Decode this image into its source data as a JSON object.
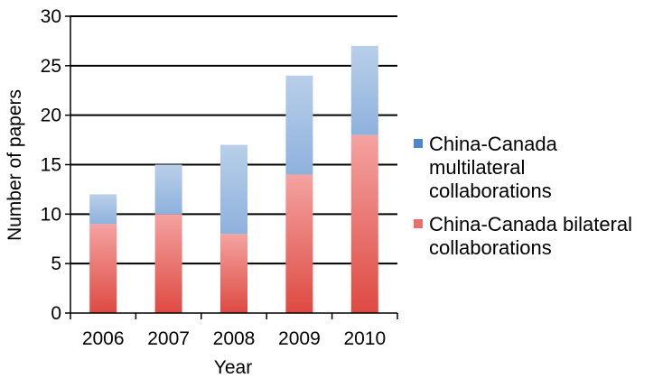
{
  "chart_data": {
    "type": "bar",
    "stacked": true,
    "categories": [
      "2006",
      "2007",
      "2008",
      "2009",
      "2010"
    ],
    "series": [
      {
        "name": "China-Canada bilateral collaborations",
        "values": [
          9,
          10,
          8,
          14,
          18
        ],
        "color_top": "#f4a3a1",
        "color_bottom": "#de4a42"
      },
      {
        "name": "China-Canada multilateral collaborations",
        "values": [
          3,
          5,
          9,
          10,
          9
        ],
        "color_top": "#b9cfe9",
        "color_bottom": "#8eb1dd"
      }
    ],
    "totals": [
      12,
      15,
      17,
      24,
      27
    ],
    "xlabel": "Year",
    "ylabel": "Number of papers",
    "ylim": [
      0,
      30
    ],
    "yticks": [
      0,
      5,
      10,
      15,
      20,
      25,
      30
    ],
    "grid": true,
    "legend_position": "right",
    "legend": [
      {
        "series": 1,
        "lines": [
          "China-Canada",
          "multilateral",
          "collaborations"
        ],
        "marker_color": "#4f86c8"
      },
      {
        "series": 0,
        "lines": [
          "China-Canada bilateral",
          "collaborations"
        ],
        "marker_color": "#e9716c"
      }
    ]
  }
}
